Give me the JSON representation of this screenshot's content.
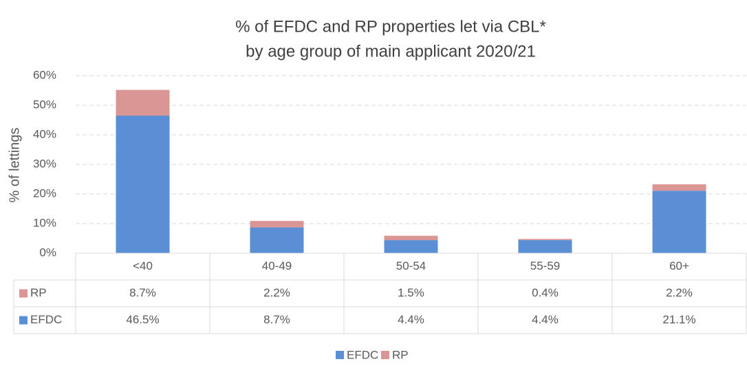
{
  "chart_data": {
    "type": "stacked_bar",
    "title": [
      "% of EFDC and RP properties let via CBL*",
      "by age group of main applicant 2020/21"
    ],
    "y_label": "% of lettings",
    "categories": [
      "<40",
      "40-49",
      "50-54",
      "55-59",
      "60+"
    ],
    "series": [
      {
        "name": "EFDC",
        "color": "#5a8fd6",
        "values": [
          46.5,
          8.7,
          4.4,
          4.4,
          21.1
        ],
        "value_labels": [
          "46.5%",
          "8.7%",
          "4.4%",
          "4.4%",
          "21.1%"
        ]
      },
      {
        "name": "RP",
        "color": "#d99694",
        "values": [
          8.7,
          2.2,
          1.5,
          0.4,
          2.2
        ],
        "value_labels": [
          "8.7%",
          "2.2%",
          "1.5%",
          "0.4%",
          "2.2%"
        ]
      }
    ],
    "ylim": [
      0,
      60
    ],
    "yticks": [
      {
        "value": 0,
        "label": "0%"
      },
      {
        "value": 10,
        "label": "10%"
      },
      {
        "value": 20,
        "label": "20%"
      },
      {
        "value": 30,
        "label": "30%"
      },
      {
        "value": 40,
        "label": "40%"
      },
      {
        "value": 50,
        "label": "50%"
      },
      {
        "value": 60,
        "label": "60%"
      }
    ],
    "grid": true,
    "legend": "bottom",
    "data_table": true
  }
}
